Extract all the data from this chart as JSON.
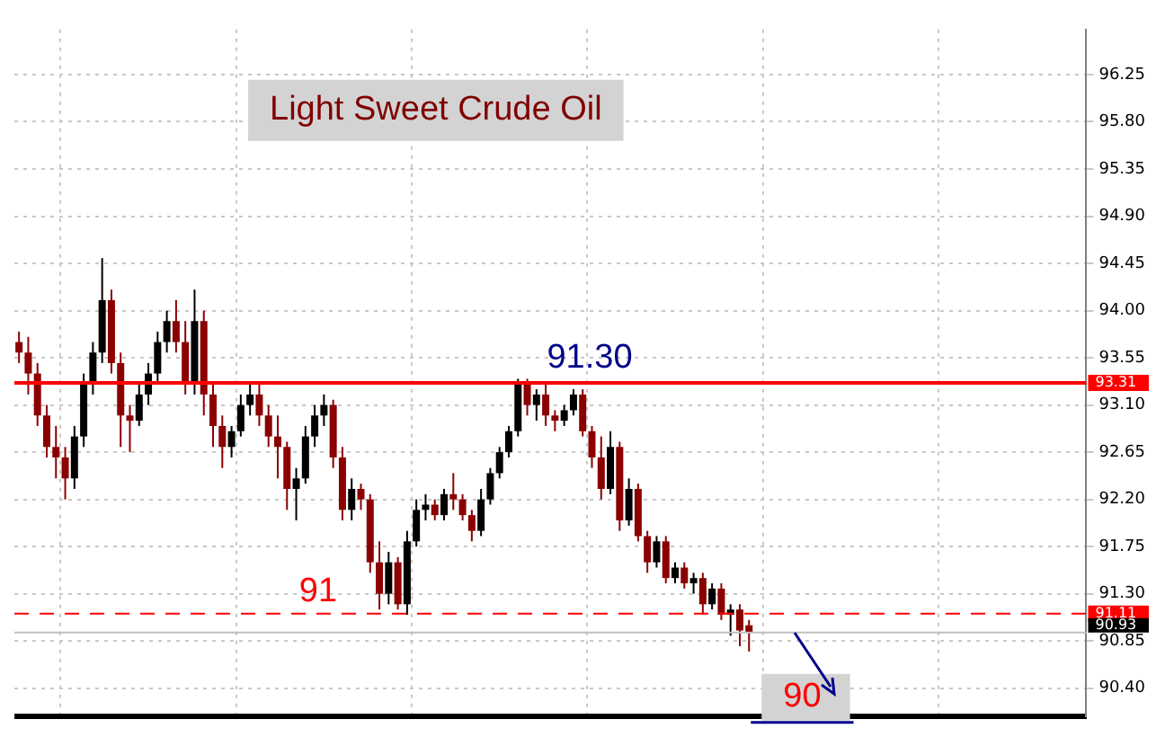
{
  "chart_data": {
    "type": "candlestick",
    "title": "Light Sweet Crude Oil",
    "categories": [
      null,
      null,
      null,
      null,
      null,
      null,
      null,
      null,
      null,
      null,
      null,
      null,
      null,
      null,
      null,
      null,
      null,
      null,
      null,
      null,
      null,
      null,
      null,
      null,
      null,
      null,
      null,
      null,
      null,
      null,
      null,
      null,
      null,
      null,
      null,
      null,
      null,
      null,
      null,
      null,
      null,
      null,
      null,
      null,
      null,
      null,
      null,
      null,
      null,
      null,
      null,
      null,
      null,
      null,
      null,
      null,
      null,
      null,
      null,
      null,
      null,
      null,
      null,
      null,
      null,
      null,
      null,
      null,
      null,
      null,
      null,
      null,
      null,
      null,
      null,
      null,
      null,
      null,
      null,
      null,
      null,
      null,
      null,
      null,
      null,
      null,
      null,
      null,
      null,
      null,
      null,
      null,
      null,
      null,
      null,
      null,
      null,
      null,
      null,
      null,
      null,
      null,
      null,
      null,
      null,
      null,
      null,
      null,
      null,
      null,
      null,
      null,
      null,
      null,
      null,
      null
    ],
    "ohlc": [
      [
        93.7,
        93.8,
        93.5,
        93.6
      ],
      [
        93.6,
        93.75,
        93.2,
        93.4
      ],
      [
        93.4,
        93.5,
        92.9,
        93.0
      ],
      [
        93.0,
        93.1,
        92.6,
        92.7
      ],
      [
        92.7,
        92.9,
        92.4,
        92.6
      ],
      [
        92.6,
        92.7,
        92.2,
        92.4
      ],
      [
        92.4,
        92.9,
        92.3,
        92.8
      ],
      [
        92.8,
        93.4,
        92.7,
        93.3
      ],
      [
        93.3,
        93.7,
        93.2,
        93.6
      ],
      [
        93.6,
        94.5,
        93.5,
        94.1
      ],
      [
        94.1,
        94.2,
        93.4,
        93.5
      ],
      [
        93.5,
        93.6,
        92.7,
        93.0
      ],
      [
        93.0,
        93.1,
        92.65,
        92.95
      ],
      [
        92.95,
        93.3,
        92.9,
        93.2
      ],
      [
        93.2,
        93.5,
        93.1,
        93.4
      ],
      [
        93.4,
        93.8,
        93.3,
        93.7
      ],
      [
        93.7,
        94.0,
        93.6,
        93.9
      ],
      [
        93.9,
        94.1,
        93.6,
        93.7
      ],
      [
        93.7,
        93.9,
        93.2,
        93.3
      ],
      [
        93.3,
        94.2,
        93.2,
        93.9
      ],
      [
        93.9,
        94.0,
        93.0,
        93.2
      ],
      [
        93.2,
        93.3,
        92.7,
        92.9
      ],
      [
        92.9,
        93.0,
        92.5,
        92.7
      ],
      [
        92.7,
        92.9,
        92.6,
        92.85
      ],
      [
        92.85,
        93.2,
        92.8,
        93.1
      ],
      [
        93.1,
        93.3,
        93.0,
        93.2
      ],
      [
        93.2,
        93.3,
        92.9,
        93.0
      ],
      [
        93.0,
        93.1,
        92.7,
        92.8
      ],
      [
        92.8,
        93.0,
        92.4,
        92.7
      ],
      [
        92.7,
        92.75,
        92.1,
        92.3
      ],
      [
        92.3,
        92.5,
        92.0,
        92.4
      ],
      [
        92.4,
        92.9,
        92.35,
        92.8
      ],
      [
        92.8,
        93.1,
        92.7,
        93.0
      ],
      [
        93.0,
        93.2,
        92.9,
        93.1
      ],
      [
        93.1,
        93.15,
        92.5,
        92.6
      ],
      [
        92.6,
        92.7,
        92.0,
        92.1
      ],
      [
        92.1,
        92.4,
        92.0,
        92.3
      ],
      [
        92.3,
        92.35,
        92.1,
        92.2
      ],
      [
        92.2,
        92.25,
        91.5,
        91.6
      ],
      [
        91.6,
        91.8,
        91.15,
        91.3
      ],
      [
        91.3,
        91.7,
        91.2,
        91.6
      ],
      [
        91.6,
        91.65,
        91.15,
        91.2
      ],
      [
        91.2,
        91.9,
        91.1,
        91.8
      ],
      [
        91.8,
        92.2,
        91.75,
        92.1
      ],
      [
        92.1,
        92.25,
        92.0,
        92.15
      ],
      [
        92.15,
        92.2,
        92.0,
        92.05
      ],
      [
        92.05,
        92.3,
        92.0,
        92.25
      ],
      [
        92.25,
        92.45,
        92.1,
        92.2
      ],
      [
        92.2,
        92.25,
        92.0,
        92.05
      ],
      [
        92.05,
        92.1,
        91.8,
        91.9
      ],
      [
        91.9,
        92.3,
        91.85,
        92.2
      ],
      [
        92.2,
        92.5,
        92.15,
        92.45
      ],
      [
        92.45,
        92.7,
        92.4,
        92.65
      ],
      [
        92.65,
        92.9,
        92.6,
        92.85
      ],
      [
        92.85,
        93.35,
        92.8,
        93.3
      ],
      [
        93.3,
        93.35,
        93.0,
        93.1
      ],
      [
        93.1,
        93.25,
        92.95,
        93.2
      ],
      [
        93.2,
        93.3,
        92.9,
        93.0
      ],
      [
        93.0,
        93.05,
        92.85,
        92.95
      ],
      [
        92.95,
        93.1,
        92.9,
        93.05
      ],
      [
        93.05,
        93.25,
        93.0,
        93.2
      ],
      [
        93.2,
        93.25,
        92.8,
        92.85
      ],
      [
        92.85,
        92.9,
        92.5,
        92.6
      ],
      [
        92.6,
        92.8,
        92.2,
        92.3
      ],
      [
        92.3,
        92.85,
        92.25,
        92.7
      ],
      [
        92.7,
        92.75,
        91.9,
        92.0
      ],
      [
        92.0,
        92.4,
        91.95,
        92.3
      ],
      [
        92.3,
        92.35,
        91.8,
        91.85
      ],
      [
        91.85,
        91.9,
        91.5,
        91.6
      ],
      [
        91.6,
        91.85,
        91.55,
        91.8
      ],
      [
        91.8,
        91.85,
        91.4,
        91.45
      ],
      [
        91.45,
        91.6,
        91.4,
        91.55
      ],
      [
        91.55,
        91.6,
        91.35,
        91.4
      ],
      [
        91.4,
        91.5,
        91.3,
        91.45
      ],
      [
        91.45,
        91.5,
        91.1,
        91.2
      ],
      [
        91.2,
        91.4,
        91.15,
        91.35
      ],
      [
        91.35,
        91.4,
        91.05,
        91.1
      ],
      [
        91.1,
        91.2,
        90.9,
        91.15
      ],
      [
        91.15,
        91.2,
        90.8,
        90.95
      ],
      [
        91.0,
        91.05,
        90.75,
        90.93
      ],
      null,
      null,
      null,
      null,
      null,
      null,
      null,
      null,
      null,
      null,
      null,
      null,
      null,
      null,
      null,
      null,
      null,
      null,
      null,
      null,
      null,
      null,
      null,
      null,
      null,
      null,
      null,
      null,
      null,
      null,
      null,
      null,
      null,
      null,
      null,
      null
    ],
    "colors": [
      "#8b0000",
      "#8b0000",
      "#8b0000",
      "#8b0000",
      "#8b0000",
      "#8b0000",
      "#000000",
      "#000000",
      "#000000",
      "#000000",
      "#8b0000",
      "#8b0000",
      "#8b0000",
      "#000000",
      "#000000",
      "#000000",
      "#000000",
      "#8b0000",
      "#8b0000",
      "#000000",
      "#8b0000",
      "#8b0000",
      "#8b0000",
      "#000000",
      "#000000",
      "#000000",
      "#8b0000",
      "#8b0000",
      "#8b0000",
      "#8b0000",
      "#000000",
      "#000000",
      "#000000",
      "#000000",
      "#8b0000",
      "#8b0000",
      "#000000",
      "#8b0000",
      "#8b0000",
      "#8b0000",
      "#000000",
      "#8b0000",
      "#000000",
      "#000000",
      "#000000",
      "#8b0000",
      "#000000",
      "#8b0000",
      "#8b0000",
      "#8b0000",
      "#000000",
      "#000000",
      "#000000",
      "#000000",
      "#000000",
      "#8b0000",
      "#000000",
      "#8b0000",
      "#8b0000",
      "#000000",
      "#000000",
      "#8b0000",
      "#8b0000",
      "#8b0000",
      "#000000",
      "#8b0000",
      "#000000",
      "#8b0000",
      "#8b0000",
      "#000000",
      "#8b0000",
      "#000000",
      "#8b0000",
      "#000000",
      "#8b0000",
      "#000000",
      "#8b0000",
      "#000000",
      "#8b0000",
      "#8b0000",
      null,
      null,
      null,
      null,
      null,
      null,
      null,
      null,
      null,
      null,
      null,
      null,
      null,
      null,
      null,
      null,
      null,
      null,
      null,
      null,
      null,
      null,
      null,
      null,
      null,
      null,
      null,
      null,
      null,
      null,
      null,
      null,
      null,
      null,
      null,
      null
    ],
    "ylim": [
      90.13,
      96.68
    ],
    "yticks": [
      {
        "value": 90.4,
        "label": "90.40"
      },
      90.85,
      {
        "value": 91.3,
        "label": "91.30"
      },
      91.75,
      {
        "value": 92.2,
        "label": "92.20"
      },
      92.65,
      {
        "value": 93.1,
        "label": "93.10"
      },
      93.55,
      {
        "value": 94,
        "label": "94.00"
      },
      94.45,
      {
        "value": 94.9,
        "label": "94.90"
      },
      95.35,
      {
        "value": 95.8,
        "label": "95.80"
      },
      96.25
    ],
    "grid": true,
    "ref_lines": [
      {
        "axis": "y",
        "value": 93.31,
        "label": "93.31",
        "color": "#ff0000",
        "line_style": "solid"
      },
      {
        "axis": "y",
        "value": 91.11,
        "label": "91.11",
        "color": "#ff0000",
        "line_style": "dashed"
      },
      {
        "axis": "y",
        "value": 90.93,
        "label": "90.93",
        "color": "#c0c0c0",
        "line_style": "solid"
      }
    ],
    "annotations": [
      {
        "text": "91.30",
        "y": 93.31
      },
      {
        "text": "91",
        "y": 91.11
      },
      "90"
    ]
  }
}
